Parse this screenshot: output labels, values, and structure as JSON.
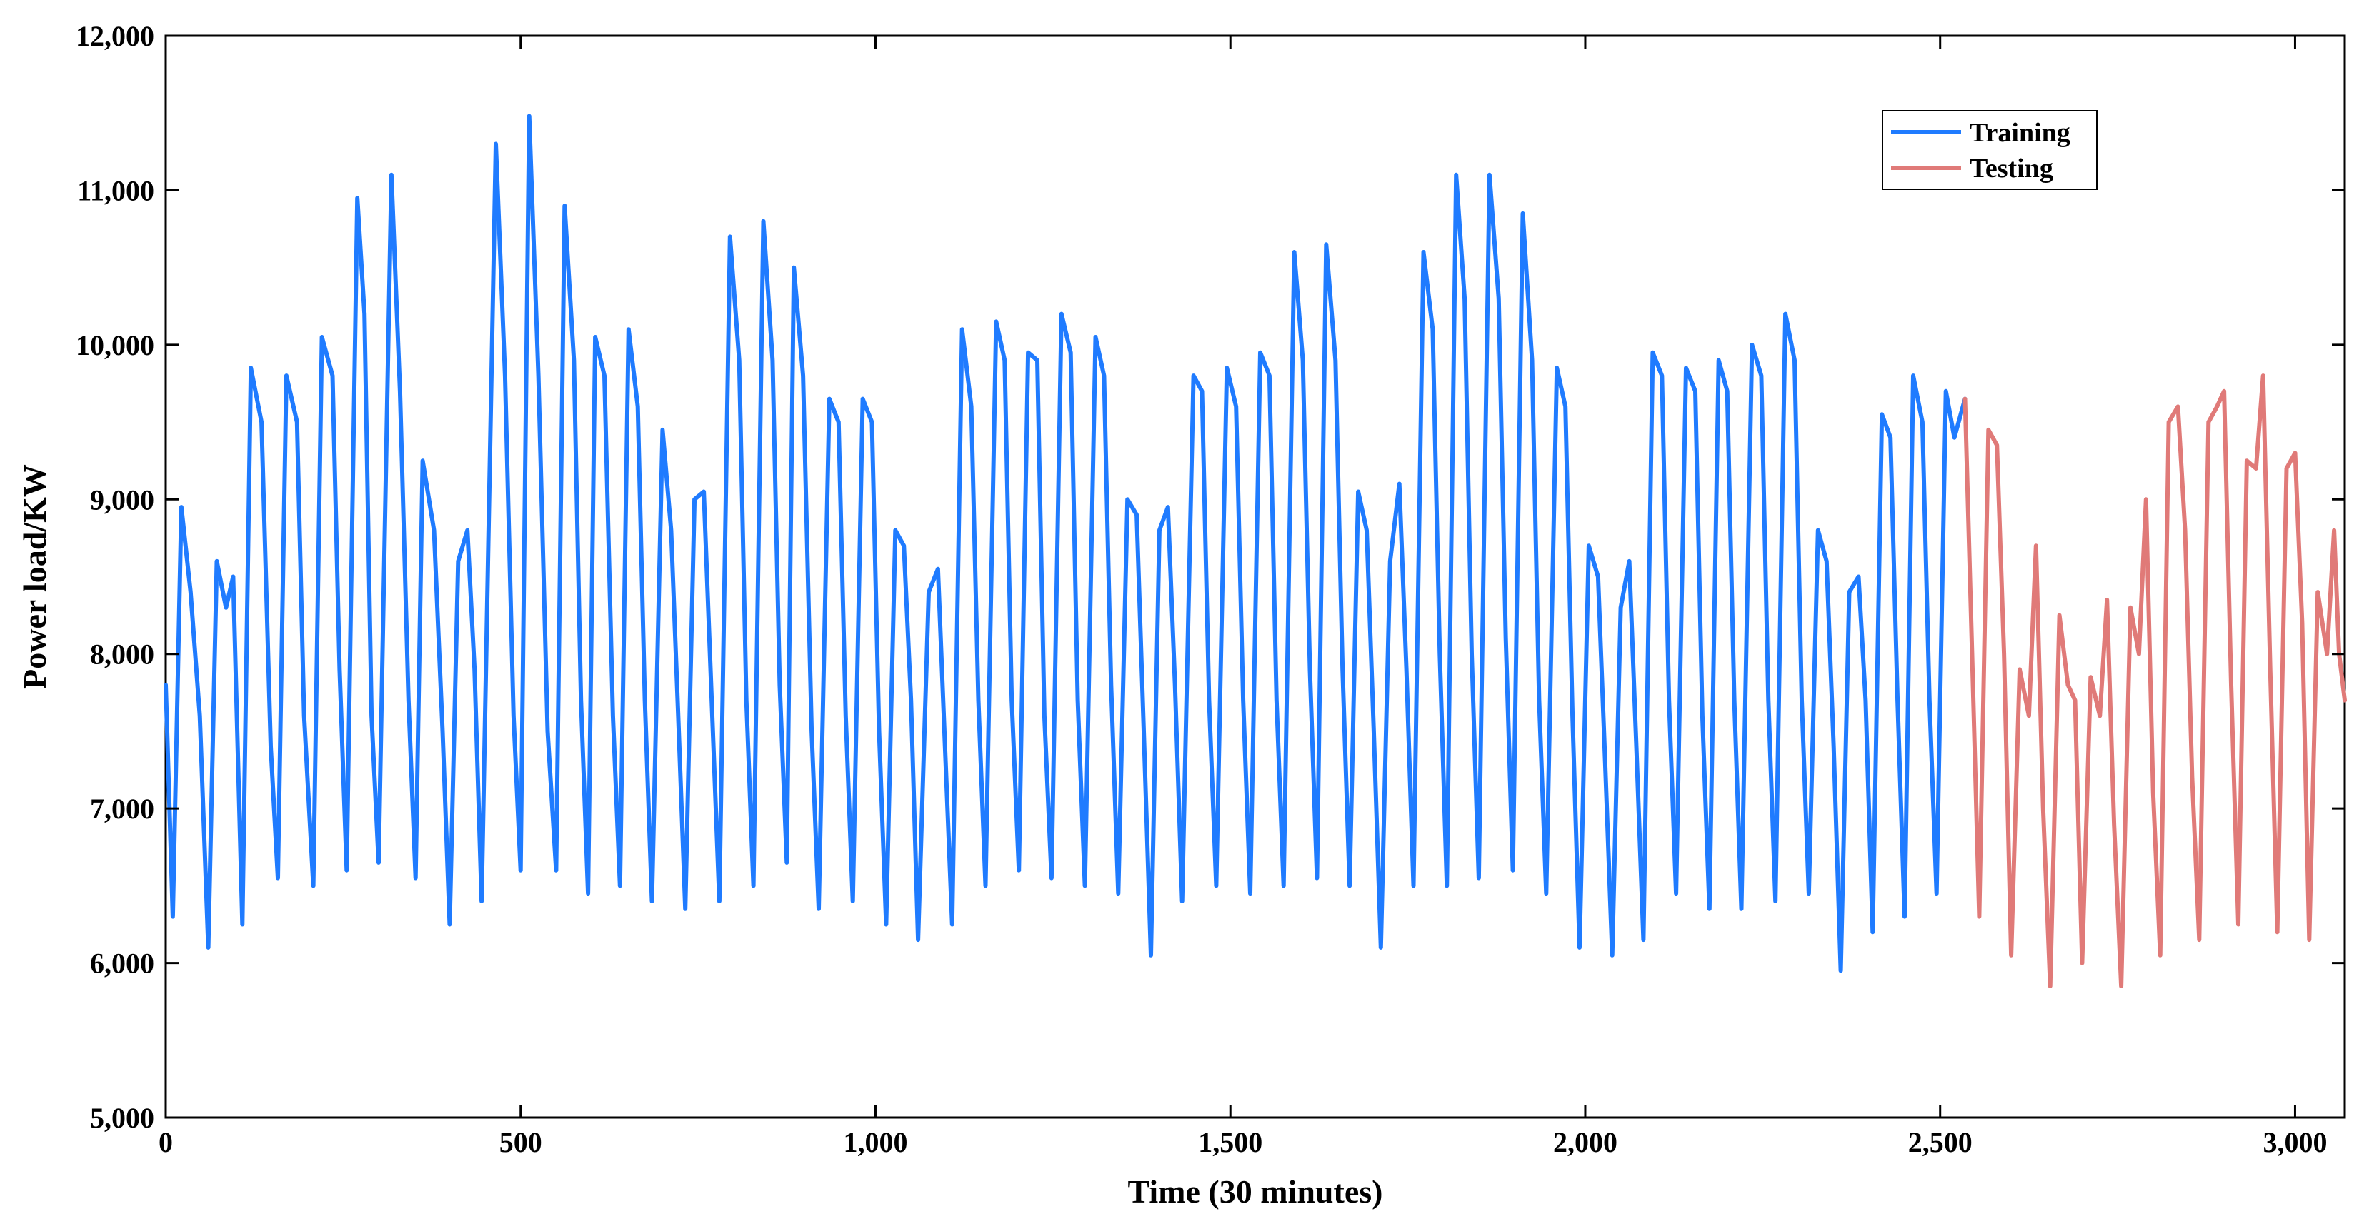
{
  "chart_data": {
    "type": "line",
    "title": "",
    "xlabel": "Time (30 minutes)",
    "ylabel": "Power load/KW",
    "xlim": [
      0,
      3070
    ],
    "ylim": [
      5000,
      12000
    ],
    "xticks": [
      0,
      500,
      1000,
      1500,
      2000,
      2500,
      3000
    ],
    "xtick_labels": [
      "0",
      "500",
      "1,000",
      "1,500",
      "2,000",
      "2,500",
      "3,000"
    ],
    "yticks": [
      5000,
      6000,
      7000,
      8000,
      9000,
      10000,
      11000,
      12000
    ],
    "ytick_labels": [
      "5,000",
      "6,000",
      "7,000",
      "8,000",
      "9,000",
      "10,000",
      "11,000",
      "12,000"
    ],
    "grid": false,
    "legend_position": "top-right",
    "series": [
      {
        "name": "Training",
        "color": "#1f7bff",
        "points": [
          [
            0,
            7800
          ],
          [
            10,
            6300
          ],
          [
            22,
            8950
          ],
          [
            35,
            8400
          ],
          [
            48,
            7600
          ],
          [
            60,
            6100
          ],
          [
            72,
            8600
          ],
          [
            85,
            8300
          ],
          [
            95,
            8500
          ],
          [
            108,
            6250
          ],
          [
            120,
            9850
          ],
          [
            135,
            9500
          ],
          [
            148,
            7400
          ],
          [
            158,
            6550
          ],
          [
            170,
            9800
          ],
          [
            185,
            9500
          ],
          [
            195,
            7600
          ],
          [
            208,
            6500
          ],
          [
            220,
            10050
          ],
          [
            235,
            9800
          ],
          [
            245,
            7900
          ],
          [
            255,
            6600
          ],
          [
            270,
            10950
          ],
          [
            280,
            10200
          ],
          [
            290,
            7600
          ],
          [
            300,
            6650
          ],
          [
            318,
            11100
          ],
          [
            330,
            9700
          ],
          [
            342,
            7700
          ],
          [
            352,
            6550
          ],
          [
            362,
            9250
          ],
          [
            378,
            8800
          ],
          [
            390,
            7500
          ],
          [
            400,
            6250
          ],
          [
            412,
            8600
          ],
          [
            425,
            8800
          ],
          [
            435,
            7900
          ],
          [
            445,
            6400
          ],
          [
            465,
            11300
          ],
          [
            478,
            9800
          ],
          [
            490,
            7600
          ],
          [
            500,
            6600
          ],
          [
            512,
            11480
          ],
          [
            525,
            9800
          ],
          [
            538,
            7500
          ],
          [
            550,
            6600
          ],
          [
            562,
            10900
          ],
          [
            575,
            9900
          ],
          [
            585,
            7700
          ],
          [
            595,
            6450
          ],
          [
            605,
            10050
          ],
          [
            618,
            9800
          ],
          [
            630,
            7600
          ],
          [
            640,
            6500
          ],
          [
            652,
            10100
          ],
          [
            665,
            9600
          ],
          [
            675,
            7700
          ],
          [
            685,
            6400
          ],
          [
            700,
            9450
          ],
          [
            712,
            8800
          ],
          [
            722,
            7600
          ],
          [
            732,
            6350
          ],
          [
            745,
            9000
          ],
          [
            758,
            9050
          ],
          [
            770,
            7600
          ],
          [
            780,
            6400
          ],
          [
            795,
            10700
          ],
          [
            808,
            9900
          ],
          [
            818,
            7700
          ],
          [
            828,
            6500
          ],
          [
            842,
            10800
          ],
          [
            855,
            9900
          ],
          [
            865,
            7800
          ],
          [
            875,
            6650
          ],
          [
            885,
            10500
          ],
          [
            898,
            9800
          ],
          [
            910,
            7500
          ],
          [
            920,
            6350
          ],
          [
            935,
            9650
          ],
          [
            948,
            9500
          ],
          [
            958,
            7600
          ],
          [
            968,
            6400
          ],
          [
            982,
            9650
          ],
          [
            995,
            9500
          ],
          [
            1005,
            7500
          ],
          [
            1015,
            6250
          ],
          [
            1028,
            8800
          ],
          [
            1040,
            8700
          ],
          [
            1050,
            7700
          ],
          [
            1060,
            6150
          ],
          [
            1075,
            8400
          ],
          [
            1088,
            8550
          ],
          [
            1098,
            7400
          ],
          [
            1108,
            6250
          ],
          [
            1122,
            10100
          ],
          [
            1135,
            9600
          ],
          [
            1145,
            7700
          ],
          [
            1155,
            6500
          ],
          [
            1170,
            10150
          ],
          [
            1182,
            9900
          ],
          [
            1192,
            7700
          ],
          [
            1202,
            6600
          ],
          [
            1215,
            9950
          ],
          [
            1228,
            9900
          ],
          [
            1238,
            7600
          ],
          [
            1248,
            6550
          ],
          [
            1262,
            10200
          ],
          [
            1275,
            9950
          ],
          [
            1285,
            7700
          ],
          [
            1295,
            6500
          ],
          [
            1310,
            10050
          ],
          [
            1322,
            9800
          ],
          [
            1332,
            7800
          ],
          [
            1342,
            6450
          ],
          [
            1355,
            9000
          ],
          [
            1368,
            8900
          ],
          [
            1378,
            7500
          ],
          [
            1388,
            6050
          ],
          [
            1400,
            8800
          ],
          [
            1412,
            8950
          ],
          [
            1422,
            7800
          ],
          [
            1432,
            6400
          ],
          [
            1448,
            9800
          ],
          [
            1460,
            9700
          ],
          [
            1470,
            7700
          ],
          [
            1480,
            6500
          ],
          [
            1495,
            9850
          ],
          [
            1508,
            9600
          ],
          [
            1518,
            7700
          ],
          [
            1528,
            6450
          ],
          [
            1542,
            9950
          ],
          [
            1555,
            9800
          ],
          [
            1565,
            7700
          ],
          [
            1575,
            6500
          ],
          [
            1590,
            10600
          ],
          [
            1602,
            9900
          ],
          [
            1612,
            7900
          ],
          [
            1622,
            6550
          ],
          [
            1635,
            10650
          ],
          [
            1648,
            9900
          ],
          [
            1658,
            7900
          ],
          [
            1668,
            6500
          ],
          [
            1680,
            9050
          ],
          [
            1692,
            8800
          ],
          [
            1702,
            7500
          ],
          [
            1712,
            6100
          ],
          [
            1725,
            8600
          ],
          [
            1738,
            9100
          ],
          [
            1748,
            7900
          ],
          [
            1758,
            6500
          ],
          [
            1772,
            10600
          ],
          [
            1785,
            10100
          ],
          [
            1795,
            8000
          ],
          [
            1805,
            6500
          ],
          [
            1818,
            11100
          ],
          [
            1830,
            10300
          ],
          [
            1840,
            8000
          ],
          [
            1850,
            6550
          ],
          [
            1865,
            11100
          ],
          [
            1878,
            10300
          ],
          [
            1888,
            8100
          ],
          [
            1898,
            6600
          ],
          [
            1912,
            10850
          ],
          [
            1925,
            9900
          ],
          [
            1935,
            7700
          ],
          [
            1945,
            6450
          ],
          [
            1960,
            9850
          ],
          [
            1972,
            9600
          ],
          [
            1982,
            7600
          ],
          [
            1992,
            6100
          ],
          [
            2005,
            8700
          ],
          [
            2018,
            8500
          ],
          [
            2028,
            7300
          ],
          [
            2038,
            6050
          ],
          [
            2050,
            8300
          ],
          [
            2062,
            8600
          ],
          [
            2072,
            7400
          ],
          [
            2082,
            6150
          ],
          [
            2095,
            9950
          ],
          [
            2108,
            9800
          ],
          [
            2118,
            7700
          ],
          [
            2128,
            6450
          ],
          [
            2142,
            9850
          ],
          [
            2155,
            9700
          ],
          [
            2165,
            7600
          ],
          [
            2175,
            6350
          ],
          [
            2188,
            9900
          ],
          [
            2200,
            9700
          ],
          [
            2210,
            7700
          ],
          [
            2220,
            6350
          ],
          [
            2235,
            10000
          ],
          [
            2248,
            9800
          ],
          [
            2258,
            7700
          ],
          [
            2268,
            6400
          ],
          [
            2282,
            10200
          ],
          [
            2295,
            9900
          ],
          [
            2305,
            7700
          ],
          [
            2315,
            6450
          ],
          [
            2328,
            8800
          ],
          [
            2340,
            8600
          ],
          [
            2350,
            7400
          ],
          [
            2360,
            5950
          ],
          [
            2372,
            8400
          ],
          [
            2385,
            8500
          ],
          [
            2395,
            7700
          ],
          [
            2405,
            6200
          ],
          [
            2418,
            9550
          ],
          [
            2430,
            9400
          ],
          [
            2440,
            7700
          ],
          [
            2450,
            6300
          ],
          [
            2462,
            9800
          ],
          [
            2475,
            9500
          ],
          [
            2485,
            7700
          ],
          [
            2495,
            6450
          ],
          [
            2508,
            9700
          ],
          [
            2520,
            9400
          ],
          [
            2535,
            9650
          ]
        ]
      },
      {
        "name": "Testing",
        "color": "#e07a78",
        "points": [
          [
            2535,
            9650
          ],
          [
            2545,
            8000
          ],
          [
            2555,
            6300
          ],
          [
            2568,
            9450
          ],
          [
            2580,
            9350
          ],
          [
            2590,
            8000
          ],
          [
            2600,
            6050
          ],
          [
            2612,
            7900
          ],
          [
            2625,
            7600
          ],
          [
            2635,
            8700
          ],
          [
            2645,
            7000
          ],
          [
            2655,
            5850
          ],
          [
            2668,
            8250
          ],
          [
            2680,
            7800
          ],
          [
            2690,
            7700
          ],
          [
            2700,
            6000
          ],
          [
            2712,
            7850
          ],
          [
            2725,
            7600
          ],
          [
            2735,
            8350
          ],
          [
            2745,
            6900
          ],
          [
            2755,
            5850
          ],
          [
            2768,
            8300
          ],
          [
            2780,
            8000
          ],
          [
            2790,
            9000
          ],
          [
            2800,
            7100
          ],
          [
            2810,
            6050
          ],
          [
            2822,
            9500
          ],
          [
            2835,
            9600
          ],
          [
            2845,
            8800
          ],
          [
            2855,
            7200
          ],
          [
            2865,
            6150
          ],
          [
            2878,
            9500
          ],
          [
            2890,
            9600
          ],
          [
            2900,
            9700
          ],
          [
            2910,
            7800
          ],
          [
            2920,
            6250
          ],
          [
            2932,
            9250
          ],
          [
            2945,
            9200
          ],
          [
            2955,
            9800
          ],
          [
            2965,
            7900
          ],
          [
            2975,
            6200
          ],
          [
            2988,
            9200
          ],
          [
            3000,
            9300
          ],
          [
            3010,
            8200
          ],
          [
            3020,
            6150
          ],
          [
            3032,
            8400
          ],
          [
            3045,
            8000
          ],
          [
            3055,
            8800
          ],
          [
            3062,
            8000
          ],
          [
            3070,
            7700
          ]
        ]
      }
    ]
  }
}
